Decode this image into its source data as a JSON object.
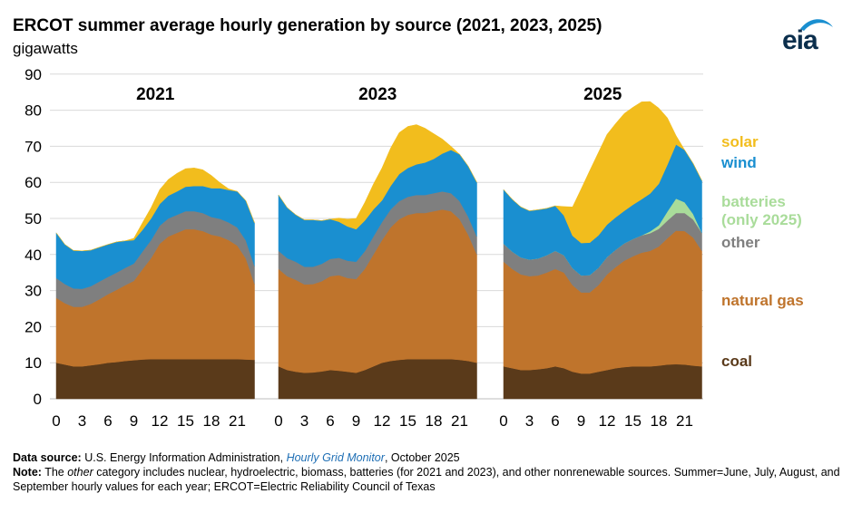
{
  "header": {
    "title": "ERCOT summer average hourly generation by source (2021, 2023, 2025)",
    "unit": "gigawatts",
    "logo_text": "eia"
  },
  "chart_data": {
    "type": "area",
    "stacked": true,
    "ylim": [
      0,
      90
    ],
    "yticks": [
      0,
      10,
      20,
      30,
      40,
      50,
      60,
      70,
      80,
      90
    ],
    "xticks": [
      0,
      3,
      6,
      9,
      12,
      15,
      18,
      21
    ],
    "grid": true,
    "legend_placement": "right",
    "colors": {
      "coal": "#5a3a1a",
      "natural gas": "#bf742c",
      "other": "#7f7f7f",
      "batteries (only 2025)": "#a9dc9a",
      "wind": "#1a8fd0",
      "solar": "#f2bd1d"
    },
    "legend": [
      {
        "key": "solar",
        "label": "solar",
        "color": "#f2bd1d"
      },
      {
        "key": "wind",
        "label": "wind",
        "color": "#1a8fd0"
      },
      {
        "key": "batteries",
        "label": "batteries",
        "label2": "(only 2025)",
        "color": "#a9dc9a"
      },
      {
        "key": "other",
        "label": "other",
        "color": "#7f7f7f"
      },
      {
        "key": "gas",
        "label": "natural gas",
        "color": "#bf742c"
      },
      {
        "key": "coal",
        "label": "coal",
        "color": "#5a3a1a"
      }
    ],
    "panels": [
      {
        "title": "2021",
        "x": [
          0,
          1,
          2,
          3,
          4,
          5,
          6,
          7,
          8,
          9,
          10,
          11,
          12,
          13,
          14,
          15,
          16,
          17,
          18,
          19,
          20,
          21,
          22,
          23
        ],
        "series": [
          {
            "name": "coal",
            "values": [
              10,
              9.5,
              9,
              9,
              9.3,
              9.6,
              10,
              10.2,
              10.5,
              10.7,
              10.9,
              11,
              11,
              11,
              11,
              11,
              11,
              11,
              11,
              11,
              11,
              11,
              10.9,
              10.8
            ]
          },
          {
            "name": "natural gas",
            "values": [
              18,
              17,
              16.5,
              16.5,
              17,
              18,
              19,
              20,
              21,
              22,
              25,
              28,
              32,
              34,
              35,
              36,
              36,
              35.5,
              34.5,
              34,
              33,
              31.5,
              28,
              21
            ]
          },
          {
            "name": "other",
            "values": [
              5.5,
              5.3,
              5.1,
              5,
              4.9,
              4.9,
              4.8,
              4.8,
              4.8,
              4.8,
              4.9,
              5,
              5,
              5,
              5,
              5,
              5,
              5,
              4.9,
              4.9,
              4.9,
              5,
              5,
              5
            ]
          },
          {
            "name": "wind",
            "values": [
              12.5,
              11,
              10.5,
              10.5,
              10,
              9.5,
              9,
              8.5,
              7.5,
              6.5,
              6,
              6,
              6,
              6.3,
              6.5,
              6.8,
              7,
              7.5,
              8,
              8.5,
              9,
              10,
              11,
              12
            ]
          },
          {
            "name": "solar",
            "values": [
              0,
              0,
              0,
              0,
              0,
              0,
              0,
              0,
              0,
              0.5,
              2,
              3,
              4,
              4.5,
              5,
              5,
              5,
              4.5,
              3.5,
              1.5,
              0.3,
              0,
              0,
              0
            ]
          }
        ]
      },
      {
        "title": "2023",
        "x": [
          0,
          1,
          2,
          3,
          4,
          5,
          6,
          7,
          8,
          9,
          10,
          11,
          12,
          13,
          14,
          15,
          16,
          17,
          18,
          19,
          20,
          21,
          22,
          23
        ],
        "series": [
          {
            "name": "coal",
            "values": [
              9,
              8,
              7.5,
              7.2,
              7.3,
              7.6,
              8,
              7.8,
              7.5,
              7.2,
              8,
              9,
              10,
              10.5,
              10.8,
              11,
              11,
              11,
              11,
              11,
              11,
              10.8,
              10.5,
              10
            ]
          },
          {
            "name": "natural gas",
            "values": [
              27,
              26,
              25.5,
              24.5,
              24.5,
              25,
              26,
              26.5,
              26,
              26,
              28,
              31,
              34,
              37,
              39,
              40,
              40.5,
              40.5,
              41,
              41.5,
              41,
              39,
              35,
              30
            ]
          },
          {
            "name": "other",
            "values": [
              5,
              5,
              5,
              4.9,
              4.8,
              4.8,
              4.8,
              4.8,
              4.8,
              4.8,
              4.9,
              5,
              5,
              5,
              5,
              5,
              5,
              5,
              5,
              5,
              5,
              5,
              5,
              5
            ]
          },
          {
            "name": "wind",
            "values": [
              15.5,
              14,
              13,
              13,
              13,
              12,
              11,
              10,
              9.5,
              9,
              8.5,
              7.5,
              6,
              6.5,
              7.5,
              8,
              8.5,
              9,
              9.5,
              10.5,
              12,
              13,
              14,
              15
            ]
          },
          {
            "name": "solar",
            "values": [
              0,
              0,
              0,
              0,
              0,
              0,
              0,
              1,
              2,
              3,
              5,
              7,
              9,
              10.5,
              11.5,
              11.5,
              11,
              9.5,
              7,
              4,
              1,
              0,
              0,
              0
            ]
          }
        ]
      },
      {
        "title": "2025",
        "x": [
          0,
          1,
          2,
          3,
          4,
          5,
          6,
          7,
          8,
          9,
          10,
          11,
          12,
          13,
          14,
          15,
          16,
          17,
          18,
          19,
          20,
          21,
          22,
          23
        ],
        "series": [
          {
            "name": "coal",
            "values": [
              9,
              8.5,
              8,
              8,
              8.2,
              8.5,
              9,
              8.5,
              7.5,
              7,
              7,
              7.5,
              8,
              8.5,
              8.8,
              9,
              9,
              9,
              9.2,
              9.5,
              9.6,
              9.5,
              9.2,
              9
            ]
          },
          {
            "name": "natural gas",
            "values": [
              29,
              27.5,
              26.5,
              26,
              26,
              26.5,
              27,
              26.5,
              24,
              22.5,
              22.5,
              24,
              26.5,
              28,
              29.5,
              30.5,
              31.5,
              32,
              33,
              35,
              37,
              37,
              35.5,
              32
            ]
          },
          {
            "name": "other",
            "values": [
              5,
              4.8,
              4.7,
              4.6,
              4.7,
              4.8,
              5,
              4.8,
              4.7,
              4.7,
              4.8,
              4.8,
              4.8,
              4.8,
              4.8,
              4.8,
              4.8,
              4.9,
              4.9,
              4.9,
              4.9,
              5,
              5,
              5
            ]
          },
          {
            "name": "batteries (only 2025)",
            "values": [
              0,
              0,
              0,
              0,
              0,
              0,
              0,
              0,
              0,
              0,
              0,
              0,
              0,
              0,
              0,
              0,
              0,
              0.5,
              1,
              2.5,
              4,
              3,
              1.5,
              0
            ]
          },
          {
            "name": "wind",
            "values": [
              15,
              14.5,
              14,
              13.5,
              13.5,
              13,
              12.5,
              11,
              9,
              9,
              9,
              9,
              9,
              9,
              9,
              9.5,
              10,
              10.5,
              11.5,
              13,
              15,
              14.5,
              14,
              14.5
            ]
          },
          {
            "name": "solar",
            "values": [
              0,
              0,
              0,
              0,
              0,
              0,
              0,
              2.5,
              8,
              15,
              20,
              23,
              25,
              26,
              27,
              27,
              27,
              25.5,
              21,
              13,
              2.5,
              0,
              0,
              0
            ]
          }
        ]
      }
    ]
  },
  "footer": {
    "source_label": "Data source:",
    "source_pre": "U.S. Energy Information Administration,",
    "source_link": "Hourly Grid Monitor",
    "source_post": ", October 2025",
    "note_label": "Note:",
    "note_pre": "The",
    "note_italic": "other",
    "note_text": "category includes nuclear, hydroelectric, biomass, batteries (for 2021 and 2023), and other nonrenewable sources. Summer=June, July, August, and September hourly values for each year; ERCOT=Electric Reliability Council of Texas"
  }
}
